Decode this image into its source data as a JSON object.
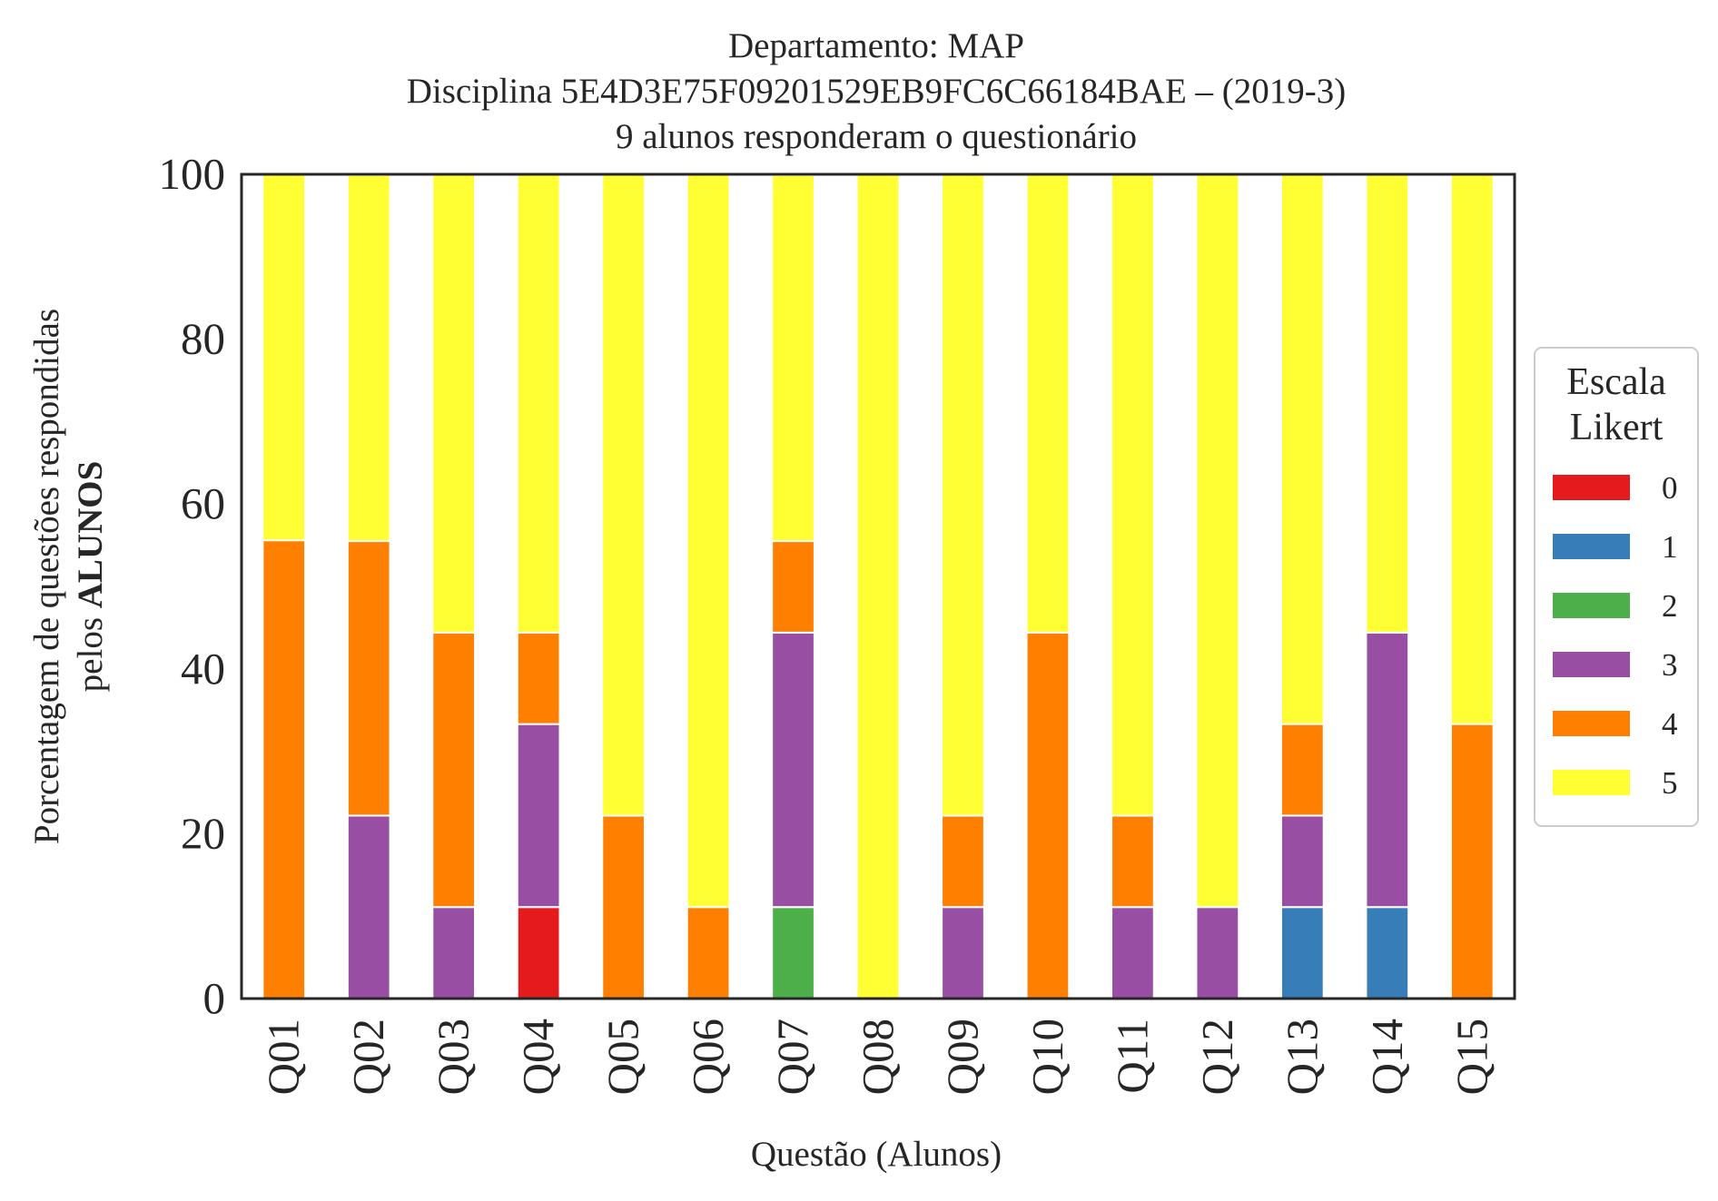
{
  "chart_data": {
    "type": "bar",
    "stacked": true,
    "title_lines": [
      "Departamento: MAP",
      "Disciplina 5E4D3E75F09201529EB9FC6C66184BAE – (2019-3)",
      "9 alunos responderam o questionário"
    ],
    "xlabel": "Questão (Alunos)",
    "ylabel_line1": "Porcentagem de questões respondidas",
    "ylabel_line2_prefix": "pelos ",
    "ylabel_line2_bold": "ALUNOS",
    "ylim": [
      0,
      100
    ],
    "yticks": [
      "0",
      "20",
      "40",
      "60",
      "80",
      "100"
    ],
    "categories": [
      "Q01",
      "Q02",
      "Q03",
      "Q04",
      "Q05",
      "Q06",
      "Q07",
      "Q08",
      "Q09",
      "Q10",
      "Q11",
      "Q12",
      "Q13",
      "Q14",
      "Q15"
    ],
    "legend_title_lines": [
      "Escala",
      "Likert"
    ],
    "legend_position": "center-right, outside plot",
    "grid": false,
    "series": [
      {
        "name": "0",
        "color": "#e41a1c",
        "values": [
          0,
          0,
          0,
          11.1,
          0,
          0,
          0,
          0,
          0,
          0,
          0,
          0,
          0,
          0,
          0
        ]
      },
      {
        "name": "1",
        "color": "#377eb8",
        "values": [
          0,
          0,
          0,
          0,
          0,
          0,
          0,
          0,
          0,
          0,
          0,
          0,
          11.1,
          11.1,
          0
        ]
      },
      {
        "name": "2",
        "color": "#4daf4a",
        "values": [
          0,
          0,
          0,
          0,
          0,
          0,
          11.1,
          0,
          0,
          0,
          0,
          0,
          0,
          0,
          0
        ]
      },
      {
        "name": "3",
        "color": "#984ea3",
        "values": [
          0,
          22.2,
          11.1,
          22.2,
          0,
          0,
          33.3,
          0,
          11.1,
          0,
          11.1,
          11.1,
          11.1,
          33.3,
          0
        ]
      },
      {
        "name": "4",
        "color": "#ff7f00",
        "values": [
          55.6,
          33.3,
          33.3,
          11.1,
          22.2,
          11.1,
          11.1,
          0,
          11.1,
          44.4,
          11.1,
          0,
          11.1,
          0,
          33.3
        ]
      },
      {
        "name": "5",
        "color": "#ffff33",
        "values": [
          44.4,
          44.4,
          55.6,
          55.6,
          77.8,
          88.9,
          44.4,
          100,
          77.8,
          55.6,
          77.8,
          88.9,
          66.7,
          55.6,
          66.7
        ]
      }
    ]
  }
}
